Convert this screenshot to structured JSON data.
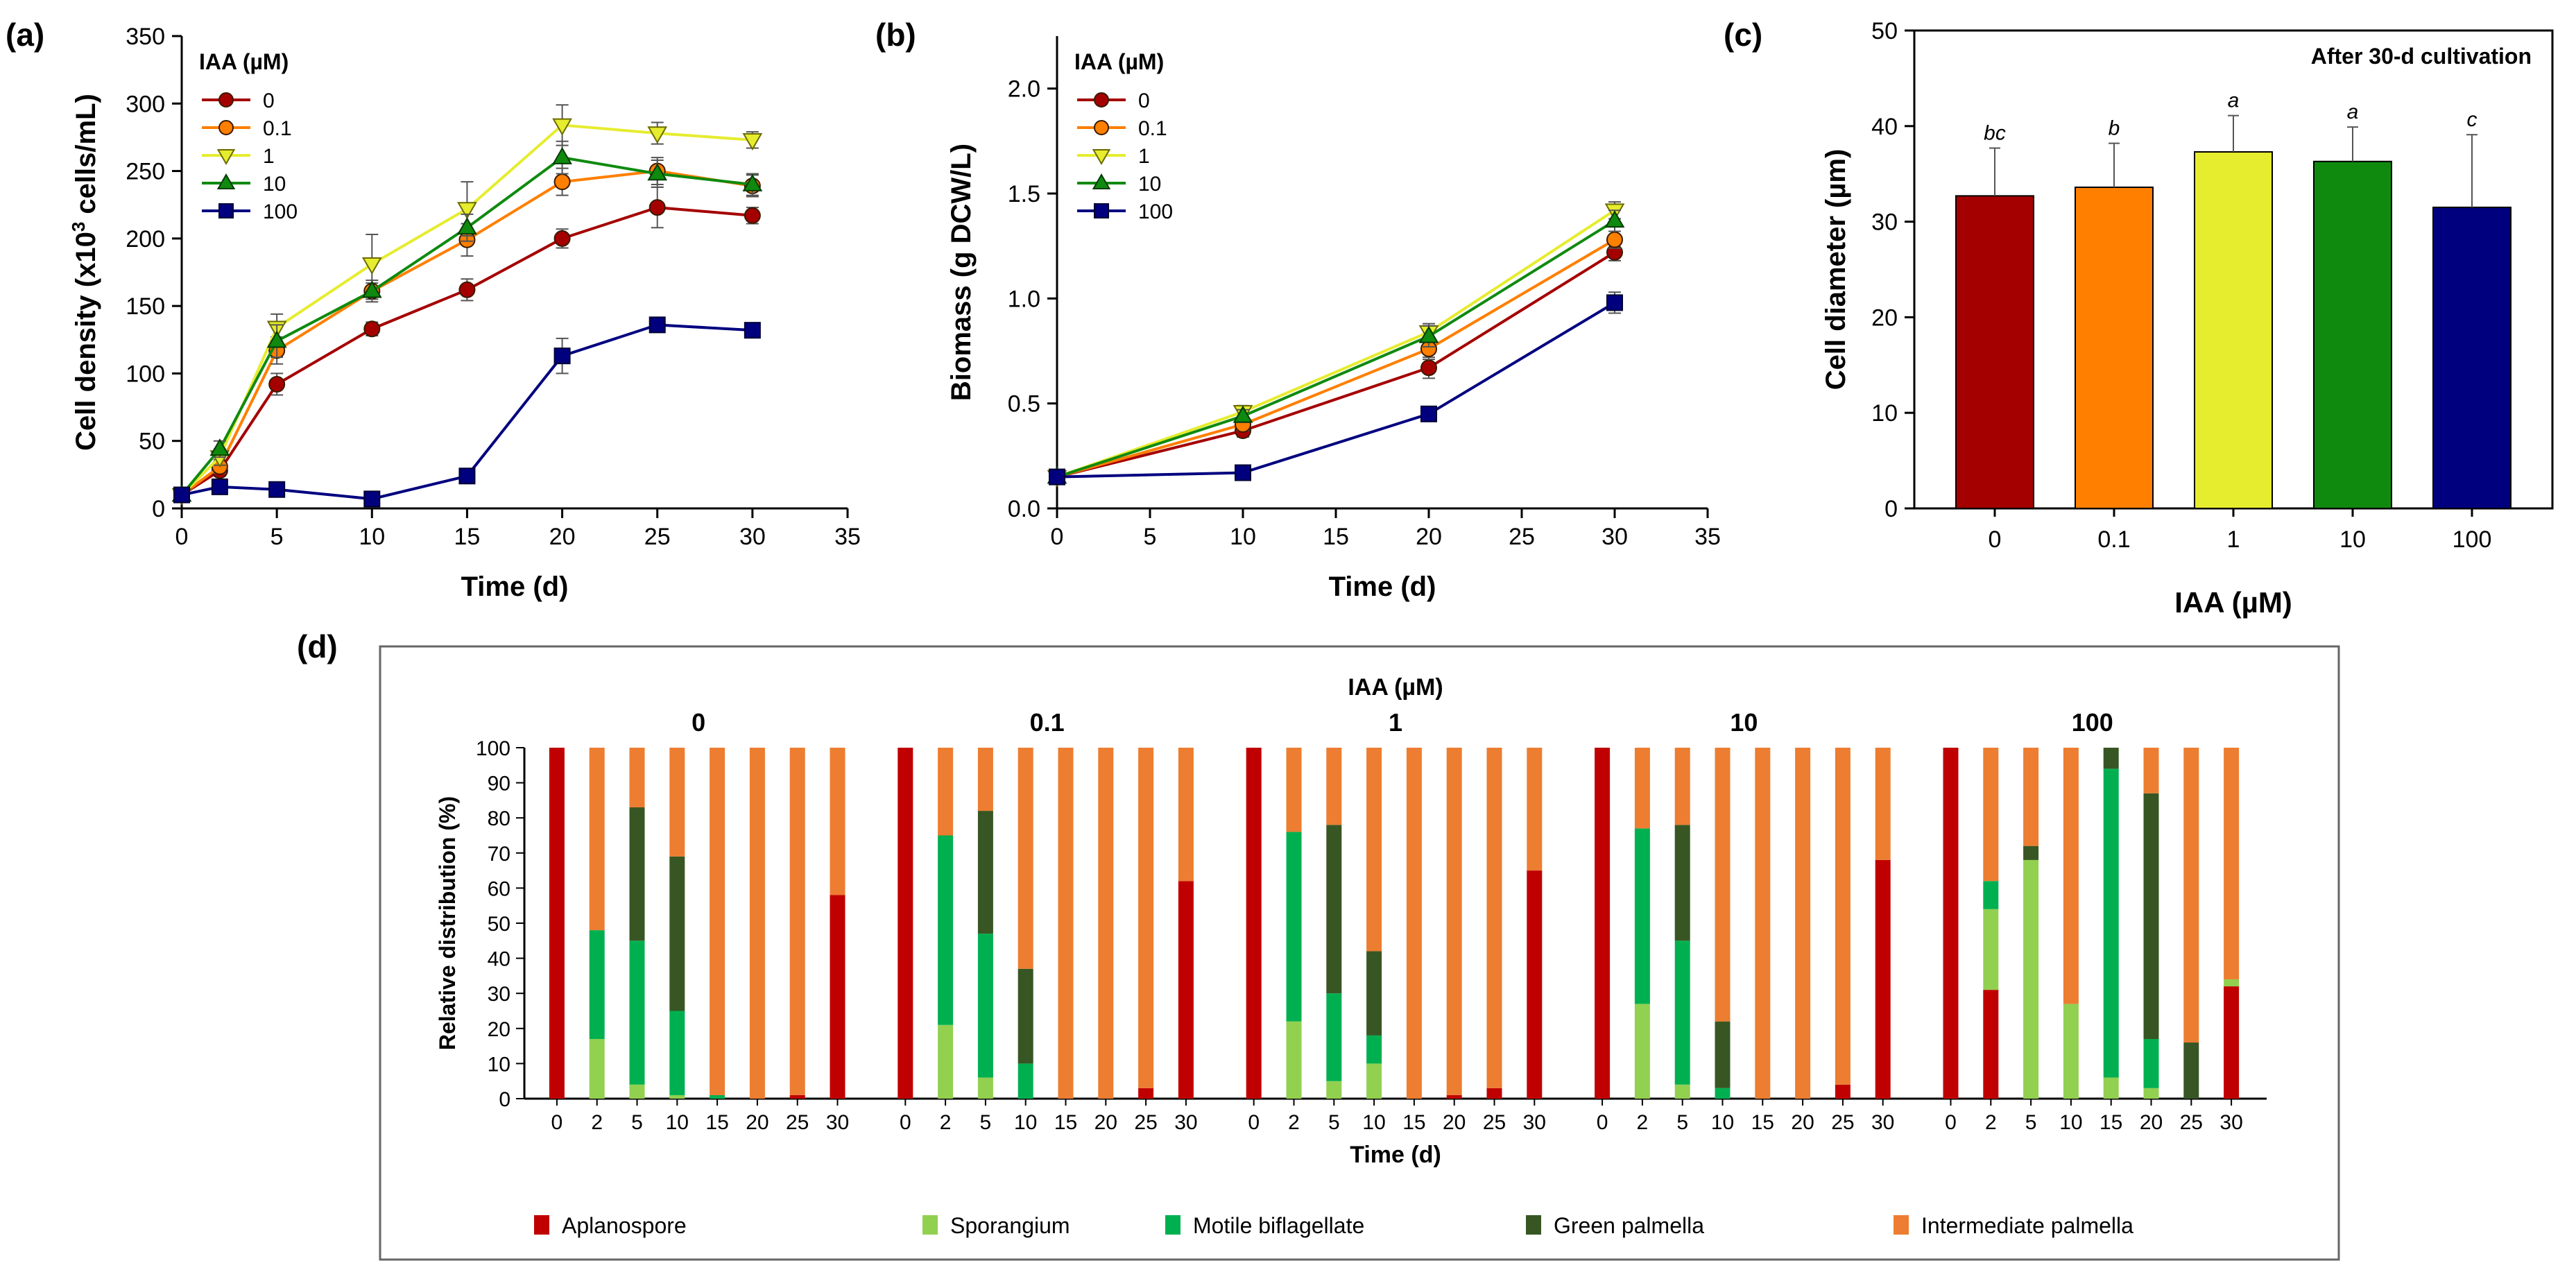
{
  "colors": {
    "c0": "#a50000",
    "c01": "#ff7f00",
    "c1": "#e6ec2e",
    "c10": "#0f8a0f",
    "c100": "#00007f",
    "aplanospore": "#c00000",
    "sporangium": "#92d050",
    "motile": "#00b050",
    "green_palmella": "#375623",
    "intermediate": "#ed7d31",
    "axis": "#000000",
    "grid": "#000000"
  },
  "chart_data": [
    {
      "id": "a",
      "type": "line",
      "panel_label": "(a)",
      "xlabel": "Time (d)",
      "ylabel_parts": [
        "Cell density (x10",
        "3",
        " cells/mL)"
      ],
      "xlim": [
        0,
        35
      ],
      "ylim": [
        0,
        350
      ],
      "xticks": [
        0,
        5,
        10,
        15,
        20,
        25,
        30,
        35
      ],
      "yticks": [
        0,
        50,
        100,
        150,
        200,
        250,
        300,
        350
      ],
      "legend_title": "IAA (µM)",
      "legend_position": "top-left",
      "series": [
        {
          "name": "0",
          "marker": "circle",
          "x": [
            0,
            2,
            5,
            10,
            15,
            20,
            25,
            30
          ],
          "y": [
            10,
            28,
            92,
            133,
            162,
            200,
            223,
            217
          ],
          "err": [
            2,
            4,
            8,
            5,
            8,
            7,
            15,
            6
          ]
        },
        {
          "name": "0.1",
          "marker": "circle",
          "x": [
            0,
            2,
            5,
            10,
            15,
            20,
            25,
            30
          ],
          "y": [
            10,
            31,
            117,
            161,
            199,
            242,
            250,
            239
          ],
          "err": [
            2,
            5,
            10,
            6,
            12,
            10,
            10,
            8
          ]
        },
        {
          "name": "1",
          "marker": "triangle-down",
          "x": [
            0,
            2,
            5,
            10,
            15,
            20,
            25,
            30
          ],
          "y": [
            10,
            38,
            134,
            181,
            222,
            284,
            278,
            273
          ],
          "err": [
            2,
            6,
            10,
            22,
            20,
            15,
            8,
            6
          ]
        },
        {
          "name": "10",
          "marker": "triangle-up",
          "x": [
            0,
            2,
            5,
            10,
            15,
            20,
            25,
            30
          ],
          "y": [
            10,
            44,
            124,
            161,
            208,
            260,
            248,
            240
          ],
          "err": [
            2,
            6,
            12,
            8,
            10,
            12,
            10,
            8
          ]
        },
        {
          "name": "100",
          "marker": "square",
          "x": [
            0,
            2,
            5,
            10,
            15,
            20,
            25,
            30
          ],
          "y": [
            10,
            16,
            14,
            7,
            24,
            113,
            136,
            132
          ],
          "err": [
            1,
            2,
            2,
            1,
            3,
            13,
            4,
            3
          ]
        }
      ]
    },
    {
      "id": "b",
      "type": "line",
      "panel_label": "(b)",
      "xlabel": "Time (d)",
      "ylabel": "Biomass (g DCW/L)",
      "xlim": [
        0,
        35
      ],
      "ylim": [
        0,
        2.25
      ],
      "xticks": [
        0,
        5,
        10,
        15,
        20,
        25,
        30,
        35
      ],
      "yticks": [
        0.0,
        0.5,
        1.0,
        1.5,
        2.0
      ],
      "ytick_labels": [
        "0.0",
        "0.5",
        "1.0",
        "1.5",
        "2.0"
      ],
      "legend_title": "IAA (µM)",
      "legend_position": "top-left",
      "series": [
        {
          "name": "0",
          "marker": "circle",
          "x": [
            0,
            10,
            20,
            30
          ],
          "y": [
            0.15,
            0.37,
            0.67,
            1.22
          ],
          "err": [
            0.01,
            0.03,
            0.05,
            0.04
          ]
        },
        {
          "name": "0.1",
          "marker": "circle",
          "x": [
            0,
            10,
            20,
            30
          ],
          "y": [
            0.15,
            0.4,
            0.76,
            1.28
          ],
          "err": [
            0.01,
            0.03,
            0.05,
            0.04
          ]
        },
        {
          "name": "1",
          "marker": "triangle-down",
          "x": [
            0,
            10,
            20,
            30
          ],
          "y": [
            0.15,
            0.46,
            0.84,
            1.42
          ],
          "err": [
            0.01,
            0.03,
            0.04,
            0.04
          ]
        },
        {
          "name": "10",
          "marker": "triangle-up",
          "x": [
            0,
            10,
            20,
            30
          ],
          "y": [
            0.15,
            0.44,
            0.82,
            1.37
          ],
          "err": [
            0.01,
            0.03,
            0.05,
            0.05
          ]
        },
        {
          "name": "100",
          "marker": "square",
          "x": [
            0,
            10,
            20,
            30
          ],
          "y": [
            0.15,
            0.17,
            0.45,
            0.98
          ],
          "err": [
            0.01,
            0.02,
            0.02,
            0.05
          ]
        }
      ]
    },
    {
      "id": "c",
      "type": "bar",
      "panel_label": "(c)",
      "title": "After 30-d cultivation",
      "xlabel": "IAA (µM)",
      "ylabel": "Cell diameter (µm)",
      "ylim": [
        0,
        50
      ],
      "yticks": [
        0,
        10,
        20,
        30,
        40,
        50
      ],
      "categories": [
        "0",
        "0.1",
        "1",
        "10",
        "100"
      ],
      "values": [
        32.7,
        33.6,
        37.3,
        36.3,
        31.5
      ],
      "err": [
        5.0,
        4.6,
        3.8,
        3.6,
        7.6
      ],
      "sig": [
        "bc",
        "b",
        "a",
        "a",
        "c"
      ]
    },
    {
      "id": "d",
      "type": "bar",
      "stacked": true,
      "panel_label": "(d)",
      "title": "IAA (µM)",
      "xlabel": "Time (d)",
      "ylabel": "Relative distribution (%)",
      "ylim": [
        0,
        100
      ],
      "yticks": [
        0,
        10,
        20,
        30,
        40,
        50,
        60,
        70,
        80,
        90,
        100
      ],
      "days": [
        "0",
        "2",
        "5",
        "10",
        "15",
        "20",
        "25",
        "30"
      ],
      "stack_order": [
        "Aplanospore",
        "Sporangium",
        "Motile biflagellate",
        "Green palmella",
        "Intermediate palmella"
      ],
      "groups": [
        {
          "label": "0",
          "values": [
            [
              100,
              0,
              0,
              0,
              0
            ],
            [
              0,
              17,
              31,
              0,
              52
            ],
            [
              0,
              4,
              41,
              38,
              17
            ],
            [
              0,
              1,
              24,
              44,
              31
            ],
            [
              0,
              0,
              1,
              0,
              99
            ],
            [
              0,
              0,
              0,
              0,
              100
            ],
            [
              1,
              0,
              0,
              0,
              99
            ],
            [
              58,
              0,
              0,
              0,
              42
            ]
          ]
        },
        {
          "label": "0.1",
          "values": [
            [
              100,
              0,
              0,
              0,
              0
            ],
            [
              0,
              21,
              54,
              0,
              25
            ],
            [
              0,
              6,
              41,
              35,
              18
            ],
            [
              0,
              0,
              10,
              27,
              63
            ],
            [
              0,
              0,
              0,
              0,
              100
            ],
            [
              0,
              0,
              0,
              0,
              100
            ],
            [
              3,
              0,
              0,
              0,
              97
            ],
            [
              62,
              0,
              0,
              0,
              38
            ]
          ]
        },
        {
          "label": "1",
          "values": [
            [
              100,
              0,
              0,
              0,
              0
            ],
            [
              0,
              22,
              54,
              0,
              24
            ],
            [
              0,
              5,
              25,
              48,
              22
            ],
            [
              0,
              10,
              8,
              24,
              58
            ],
            [
              0,
              0,
              0,
              0,
              100
            ],
            [
              1,
              0,
              0,
              0,
              99
            ],
            [
              3,
              0,
              0,
              0,
              97
            ],
            [
              65,
              0,
              0,
              0,
              35
            ]
          ]
        },
        {
          "label": "10",
          "values": [
            [
              100,
              0,
              0,
              0,
              0
            ],
            [
              0,
              27,
              50,
              0,
              23
            ],
            [
              0,
              4,
              41,
              33,
              22
            ],
            [
              0,
              0,
              3,
              19,
              78
            ],
            [
              0,
              0,
              0,
              0,
              100
            ],
            [
              0,
              0,
              0,
              0,
              100
            ],
            [
              4,
              0,
              0,
              0,
              96
            ],
            [
              68,
              0,
              0,
              0,
              32
            ]
          ]
        },
        {
          "label": "100",
          "values": [
            [
              100,
              0,
              0,
              0,
              0
            ],
            [
              31,
              23,
              8,
              0,
              38
            ],
            [
              0,
              68,
              0,
              4,
              28
            ],
            [
              0,
              27,
              0,
              0,
              73
            ],
            [
              0,
              6,
              88,
              6,
              0
            ],
            [
              0,
              3,
              14,
              70,
              13
            ],
            [
              0,
              0,
              0,
              16,
              84
            ],
            [
              32,
              2,
              0,
              0,
              66
            ]
          ]
        }
      ],
      "legend": [
        "Aplanospore",
        "Sporangium",
        "Motile biflagellate",
        "Green palmella",
        "Intermediate palmella"
      ],
      "legend_position": "bottom"
    }
  ]
}
